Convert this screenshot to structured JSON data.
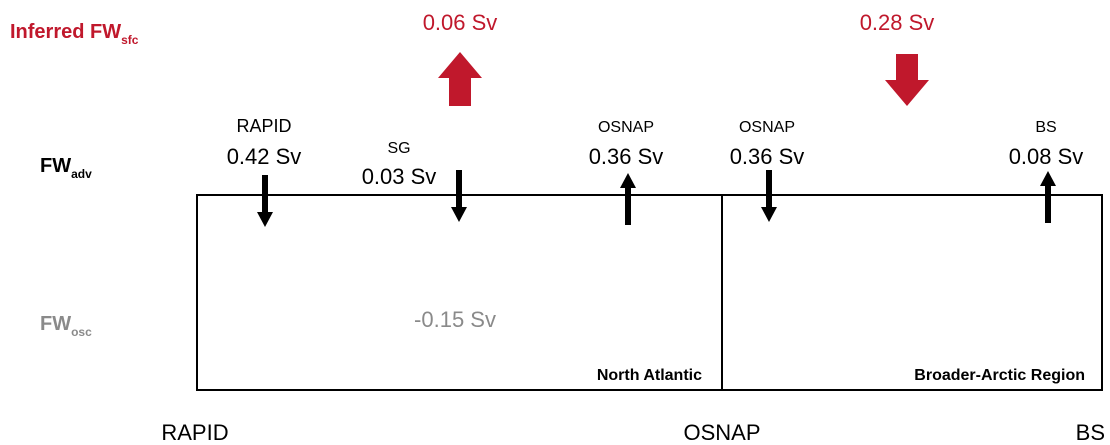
{
  "legend": {
    "surface": {
      "main": "Inferred FW",
      "sub": "sfc"
    },
    "advective": {
      "main": "FW",
      "sub": "adv"
    },
    "oscillation": {
      "main": "FW",
      "sub": "osc"
    }
  },
  "surface_fluxes": [
    {
      "value": "0.06 Sv"
    },
    {
      "value": "0.28 Sv"
    }
  ],
  "sections": [
    {
      "name": "RAPID",
      "value": "0.42 Sv"
    },
    {
      "name": "SG",
      "value": "0.03 Sv"
    },
    {
      "name": "OSNAP",
      "value": "0.36 Sv"
    },
    {
      "name": "OSNAP",
      "value": "0.36 Sv"
    },
    {
      "name": "BS",
      "value": "0.08 Sv"
    }
  ],
  "oscillation_value": "-0.15 Sv",
  "regions": [
    "North Atlantic",
    "Broader-Arctic Region"
  ],
  "axis_labels": [
    "RAPID",
    "OSNAP",
    "BS"
  ]
}
